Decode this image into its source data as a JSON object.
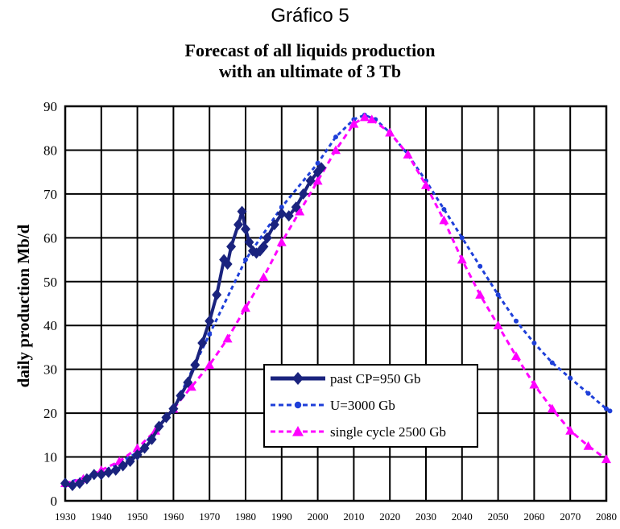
{
  "figure_caption": "Gráfico 5",
  "chart_data": {
    "type": "line",
    "title_lines": [
      "Forecast of all liquids production",
      "with an ultimate of 3 Tb"
    ],
    "xlabel": "",
    "ylabel": "daily production Mb/d",
    "xlim": [
      1930,
      2080
    ],
    "ylim": [
      0,
      90
    ],
    "x_ticks": [
      1930,
      1940,
      1950,
      1960,
      1970,
      1980,
      1990,
      2000,
      2010,
      2020,
      2030,
      2040,
      2050,
      2060,
      2070,
      2080
    ],
    "y_ticks": [
      0,
      10,
      20,
      30,
      40,
      50,
      60,
      70,
      80,
      90
    ],
    "grid": true,
    "legend_position": "bottom-center",
    "series": [
      {
        "name": "past  CP=950 Gb",
        "color": "#1a237e",
        "marker": "diamond",
        "line": "solid",
        "points": [
          [
            1930,
            4
          ],
          [
            1932,
            3.5
          ],
          [
            1934,
            4
          ],
          [
            1936,
            5
          ],
          [
            1938,
            6
          ],
          [
            1940,
            6
          ],
          [
            1942,
            6.5
          ],
          [
            1944,
            7
          ],
          [
            1946,
            8
          ],
          [
            1948,
            9
          ],
          [
            1950,
            10.5
          ],
          [
            1952,
            12
          ],
          [
            1954,
            14
          ],
          [
            1956,
            17
          ],
          [
            1958,
            19
          ],
          [
            1960,
            21
          ],
          [
            1962,
            24
          ],
          [
            1964,
            27
          ],
          [
            1966,
            31
          ],
          [
            1968,
            36
          ],
          [
            1970,
            41
          ],
          [
            1972,
            47
          ],
          [
            1974,
            55
          ],
          [
            1975,
            54
          ],
          [
            1976,
            58
          ],
          [
            1978,
            63
          ],
          [
            1979,
            66
          ],
          [
            1980,
            62
          ],
          [
            1981,
            59
          ],
          [
            1982,
            57
          ],
          [
            1983,
            56.5
          ],
          [
            1984,
            57
          ],
          [
            1985,
            58
          ],
          [
            1986,
            60
          ],
          [
            1988,
            63
          ],
          [
            1990,
            65.5
          ],
          [
            1992,
            65
          ],
          [
            1994,
            67
          ],
          [
            1996,
            70
          ],
          [
            1998,
            73
          ],
          [
            2000,
            75
          ],
          [
            2001,
            76
          ]
        ]
      },
      {
        "name": "U=3000 Gb",
        "color": "#1e3fd9",
        "marker": "dot",
        "line": "dashed",
        "points": [
          [
            1930,
            4
          ],
          [
            1940,
            6.5
          ],
          [
            1950,
            11
          ],
          [
            1960,
            21
          ],
          [
            1970,
            38
          ],
          [
            1980,
            55
          ],
          [
            1990,
            67
          ],
          [
            2000,
            77
          ],
          [
            2005,
            83
          ],
          [
            2010,
            87
          ],
          [
            2013,
            88
          ],
          [
            2016,
            87
          ],
          [
            2020,
            84
          ],
          [
            2025,
            79
          ],
          [
            2030,
            73
          ],
          [
            2035,
            66.5
          ],
          [
            2040,
            60
          ],
          [
            2045,
            53.5
          ],
          [
            2050,
            47
          ],
          [
            2055,
            41
          ],
          [
            2060,
            36
          ],
          [
            2065,
            31.5
          ],
          [
            2070,
            28
          ],
          [
            2075,
            24.5
          ],
          [
            2080,
            21
          ],
          [
            2081,
            20.5
          ]
        ]
      },
      {
        "name": "single cycle 2500 Gb",
        "color": "#ff00ff",
        "marker": "triangle",
        "line": "dashed",
        "points": [
          [
            1930,
            4
          ],
          [
            1935,
            5
          ],
          [
            1940,
            7
          ],
          [
            1945,
            9
          ],
          [
            1950,
            12
          ],
          [
            1955,
            16
          ],
          [
            1960,
            21
          ],
          [
            1965,
            26
          ],
          [
            1970,
            31
          ],
          [
            1975,
            37
          ],
          [
            1980,
            44
          ],
          [
            1985,
            51
          ],
          [
            1990,
            59
          ],
          [
            1995,
            66
          ],
          [
            2000,
            73
          ],
          [
            2005,
            80
          ],
          [
            2010,
            86
          ],
          [
            2013,
            87.5
          ],
          [
            2015,
            87
          ],
          [
            2020,
            84
          ],
          [
            2025,
            79
          ],
          [
            2030,
            72
          ],
          [
            2035,
            64
          ],
          [
            2040,
            55
          ],
          [
            2045,
            47
          ],
          [
            2050,
            40
          ],
          [
            2055,
            33
          ],
          [
            2060,
            26.5
          ],
          [
            2065,
            21
          ],
          [
            2070,
            16
          ],
          [
            2075,
            12.5
          ],
          [
            2080,
            9.5
          ]
        ]
      }
    ]
  }
}
